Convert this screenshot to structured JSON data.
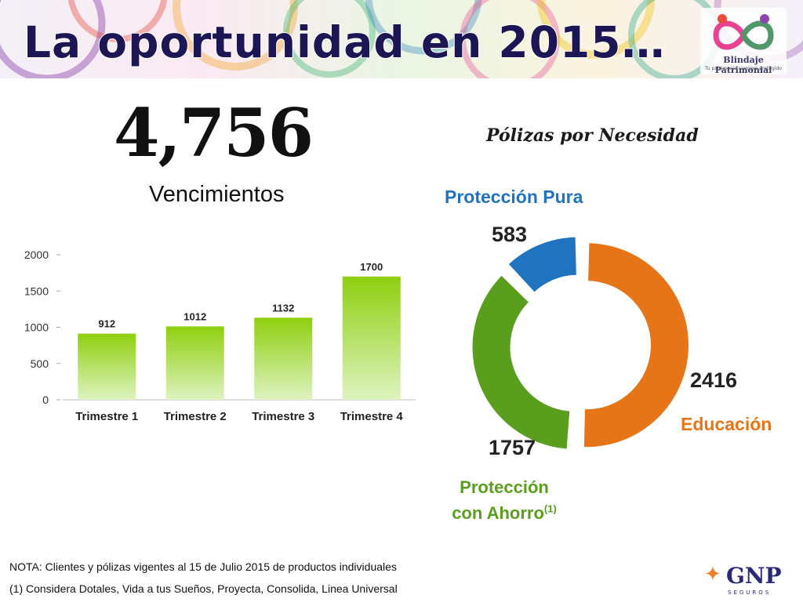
{
  "header": {
    "title": "La oportunidad en 2015…",
    "logo_name": "Blindaje Patrimonial",
    "logo_tagline": "Tu patrimonio siempre protegido"
  },
  "headline": {
    "total": "4,756",
    "left_title": "Vencimientos",
    "right_title": "Pólizas por Necesidad"
  },
  "chart_data": [
    {
      "type": "bar",
      "title": "Vencimientos",
      "categories": [
        "Trimestre 1",
        "Trimestre 2",
        "Trimestre 3",
        "Trimestre 4"
      ],
      "values": [
        912,
        1012,
        1132,
        1700
      ],
      "data_labels": [
        "912",
        "1012",
        "1132",
        "1700"
      ],
      "ylim": [
        0,
        2000
      ],
      "yticks": [
        0,
        500,
        1000,
        1500,
        2000
      ],
      "ytick_labels": [
        "0",
        "500",
        "1000",
        "1500",
        "2000"
      ],
      "grid": false,
      "colors": {
        "bar_top": "#8fcf0f",
        "bar_bottom": "#def3c0"
      }
    },
    {
      "type": "pie",
      "variant": "donut",
      "title": "Pólizas por Necesidad",
      "categories": [
        "Educación",
        "Protección con Ahorro",
        "Protección Pura"
      ],
      "values": [
        2416,
        1757,
        583
      ],
      "data_labels": [
        "2416",
        "1757",
        "583"
      ],
      "colors": [
        "#e57517",
        "#5a9e1e",
        "#1f73bf"
      ]
    }
  ],
  "donut_labels": {
    "pura_name": "Protección Pura",
    "pura_value": "583",
    "educacion_name": "Educación",
    "educacion_value": "2416",
    "ahorro_name_line1": "Protección",
    "ahorro_name_line2": "con Ahorro",
    "ahorro_sup": "(1)",
    "ahorro_value": "1757"
  },
  "notes": {
    "note1": "NOTA: Clientes y pólizas vigentes al 15 de Julio 2015 de productos individuales",
    "note2": "(1) Considera Dotales, Vida a tus Sueños, Proyecta, Consolida, Linea Universal"
  },
  "footer": {
    "brand": "GNP",
    "brand_sub": "SEGUROS"
  }
}
